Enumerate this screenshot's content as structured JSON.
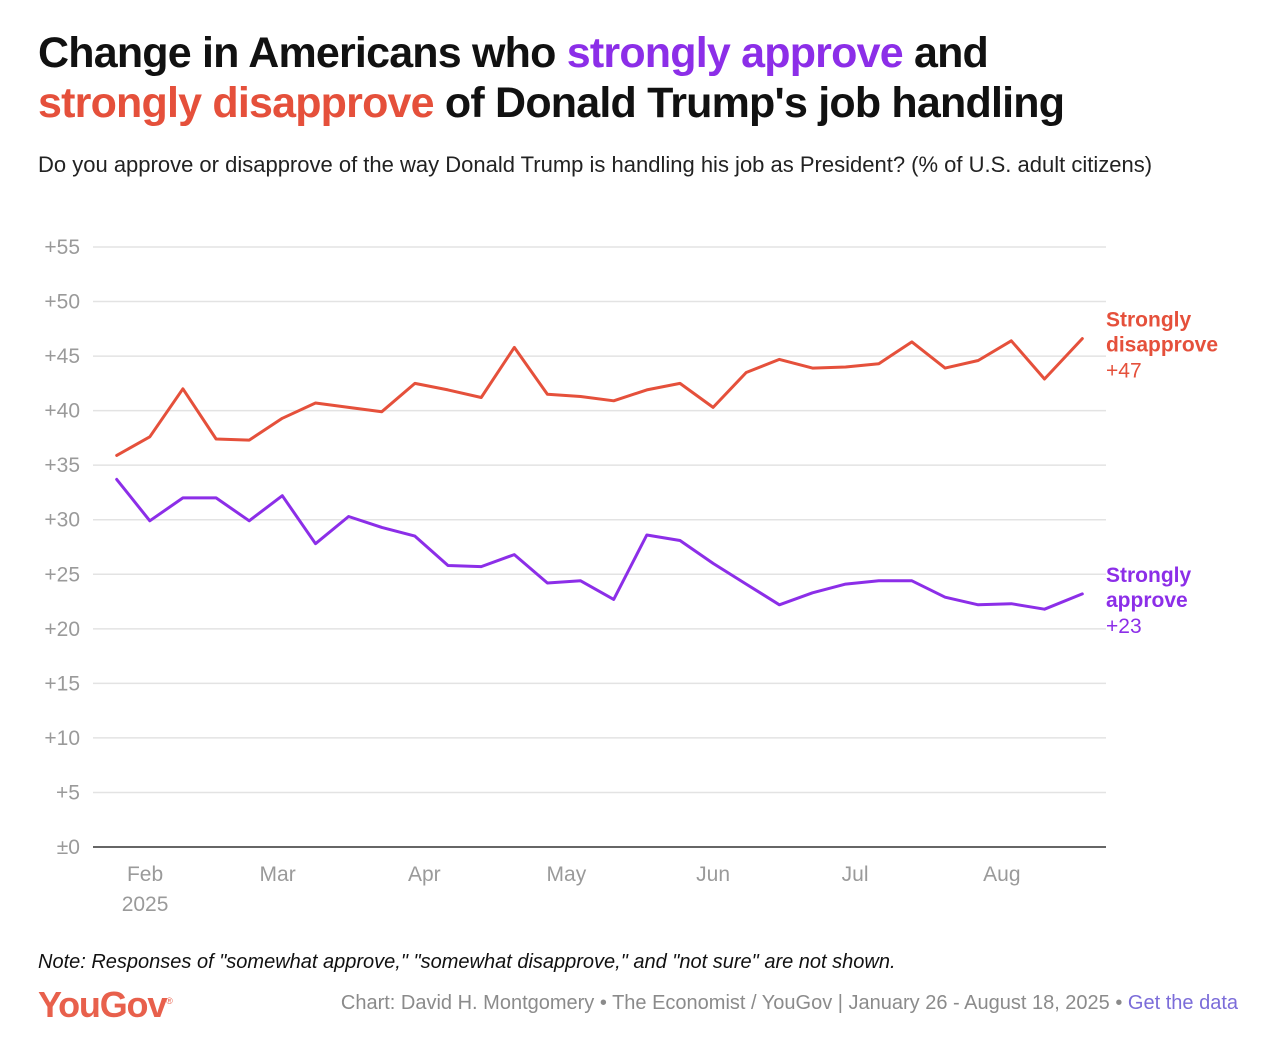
{
  "title": {
    "part1": "Change in Americans who ",
    "approve_text": "strongly approve",
    "part2": " and",
    "disapprove_text": "strongly disapprove",
    "part3": " of Donald Trump's job handling"
  },
  "subtitle": "Do you approve or disapprove of the way Donald Trump is handling his job as President? (% of U.S. adult citizens)",
  "note": "Note: Responses of \"somewhat approve,\" \"somewhat disapprove,\" and \"not sure\" are not shown.",
  "footer": {
    "logo": "YouGov",
    "logo_mark": "®",
    "credit": "Chart: David H. Montgomery • The Economist / YouGov | January 26 - August 18, 2025 • ",
    "link": "Get the data"
  },
  "colors": {
    "approve": "#8c2ee8",
    "disapprove": "#e5503b",
    "grid": "#e3e3e3",
    "tick": "#9a9a9a",
    "axis": "#333333"
  },
  "chart_data": {
    "type": "line",
    "title": "Change in Americans who strongly approve and strongly disapprove of Donald Trump's job handling",
    "xlabel": "",
    "ylabel": "",
    "ylim": [
      0,
      55
    ],
    "yticks": [
      {
        "value": 0,
        "label": "±0"
      },
      {
        "value": 5,
        "label": "+5"
      },
      {
        "value": 10,
        "label": "+10"
      },
      {
        "value": 15,
        "label": "+15"
      },
      {
        "value": 20,
        "label": "+20"
      },
      {
        "value": 25,
        "label": "+25"
      },
      {
        "value": 30,
        "label": "+30"
      },
      {
        "value": 35,
        "label": "+35"
      },
      {
        "value": 40,
        "label": "+40"
      },
      {
        "value": 45,
        "label": "+45"
      },
      {
        "value": 50,
        "label": "+50"
      },
      {
        "value": 55,
        "label": "+55"
      }
    ],
    "xlim_days": [
      -5,
      209
    ],
    "xticks": [
      {
        "day": 6,
        "label": "Feb",
        "sublabel": "2025"
      },
      {
        "day": 34,
        "label": "Mar",
        "sublabel": ""
      },
      {
        "day": 65,
        "label": "Apr",
        "sublabel": ""
      },
      {
        "day": 95,
        "label": "May",
        "sublabel": ""
      },
      {
        "day": 126,
        "label": "Jun",
        "sublabel": ""
      },
      {
        "day": 156,
        "label": "Jul",
        "sublabel": ""
      },
      {
        "day": 187,
        "label": "Aug",
        "sublabel": ""
      }
    ],
    "x_days": [
      0,
      7,
      14,
      21,
      28,
      35,
      42,
      49,
      56,
      63,
      70,
      77,
      84,
      91,
      98,
      105,
      112,
      119,
      126,
      133,
      140,
      147,
      154,
      161,
      168,
      175,
      182,
      189,
      196,
      204
    ],
    "grid": true,
    "series": [
      {
        "name": "Strongly disapprove",
        "label_line1": "Strongly",
        "label_line2": "disapprove",
        "value_label": "+47",
        "color": "#e5503b",
        "values": [
          35.9,
          37.6,
          42.0,
          37.4,
          37.3,
          39.3,
          40.7,
          40.3,
          39.9,
          42.5,
          41.9,
          41.2,
          45.8,
          41.5,
          41.3,
          40.9,
          41.9,
          42.5,
          40.3,
          43.5,
          44.7,
          43.9,
          44.0,
          44.3,
          46.3,
          43.9,
          44.6,
          46.4,
          42.9,
          46.6
        ]
      },
      {
        "name": "Strongly approve",
        "label_line1": "Strongly",
        "label_line2": "approve",
        "value_label": "+23",
        "color": "#8c2ee8",
        "values": [
          33.7,
          29.9,
          32.0,
          32.0,
          29.9,
          32.2,
          27.8,
          30.3,
          29.3,
          28.5,
          25.8,
          25.7,
          26.8,
          24.2,
          24.4,
          22.7,
          28.6,
          28.1,
          26.0,
          24.1,
          22.2,
          23.3,
          24.1,
          24.4,
          24.4,
          22.9,
          22.2,
          22.3,
          21.8,
          23.2
        ]
      }
    ]
  }
}
